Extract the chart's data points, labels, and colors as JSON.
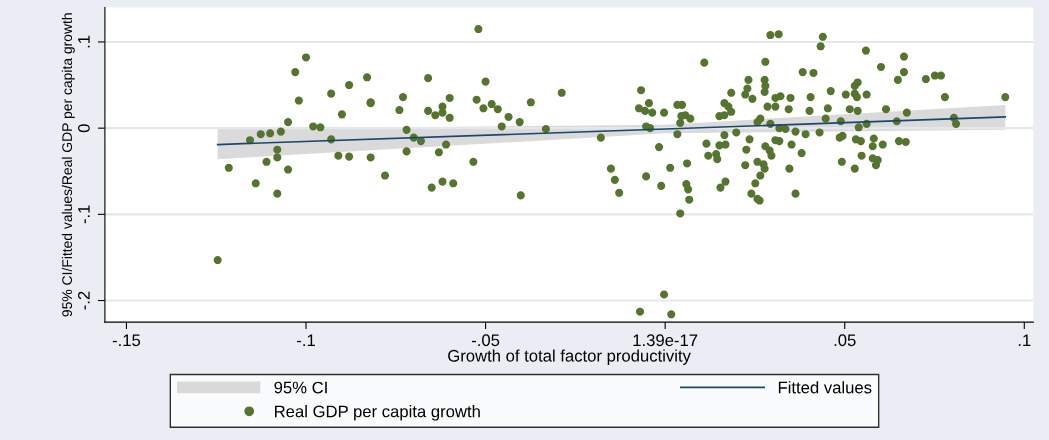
{
  "chart_data": {
    "type": "scatter",
    "xlabel": "Growth of total factor productivity",
    "ylabel": "95% CI/Fitted values/Real GDP per capita growth",
    "xlim": [
      -0.156,
      0.1025
    ],
    "ylim": [
      -0.225,
      0.14
    ],
    "xticks": [
      {
        "value": -0.15,
        "label": "-.15"
      },
      {
        "value": -0.1,
        "label": "-.1"
      },
      {
        "value": -0.05,
        "label": "-.05"
      },
      {
        "value": 0,
        "label": "1.39e-17"
      },
      {
        "value": 0.05,
        "label": ".05"
      },
      {
        "value": 0.1,
        "label": ".1"
      }
    ],
    "yticks": [
      {
        "value": -0.2,
        "label": "-.2"
      },
      {
        "value": -0.1,
        "label": "-.1"
      },
      0,
      {
        "value": 0.1,
        "label": ".1"
      }
    ],
    "grid": "y",
    "legend": "bottom",
    "annotations": [
      "95% CI"
    ],
    "series": [
      {
        "name": "Fitted values",
        "type": "line",
        "color": "#1a476f",
        "x": [
          -0.1246,
          0,
          0.0947
        ],
        "values": [
          -0.019,
          -0.001,
          0.013
        ],
        "lower": [
          -0.036,
          -0.006,
          -0.002
        ],
        "upper": [
          -0.001,
          0.004,
          0.027
        ]
      },
      {
        "name": "Real GDP per capita growth",
        "color": "#55752f",
        "marker": "circle",
        "x": [
          -0.1246,
          -0.1215,
          -0.1156,
          -0.114,
          -0.1126,
          -0.111,
          -0.11,
          -0.108,
          -0.108,
          -0.108,
          -0.107,
          -0.105,
          -0.105,
          -0.103,
          -0.102,
          -0.1,
          -0.098,
          -0.096,
          -0.093,
          -0.093,
          -0.091,
          -0.09,
          -0.088,
          -0.088,
          -0.083,
          -0.082,
          -0.082,
          -0.082,
          -0.078,
          -0.074,
          -0.073,
          -0.072,
          -0.072,
          -0.07,
          -0.068,
          -0.066,
          -0.066,
          -0.065,
          -0.064,
          -0.063,
          -0.062,
          -0.062,
          -0.062,
          -0.061,
          -0.06,
          -0.06,
          -0.059,
          -0.052,
          -0.05,
          -0.0525,
          -0.0506,
          -0.0483,
          -0.0466,
          -0.0436,
          -0.0405,
          -0.0455,
          -0.0374,
          -0.0332,
          -0.0288,
          -0.0179,
          -0.0151,
          -0.0534,
          -0.0067,
          -0.0045,
          -0.0073,
          -0.0056,
          -0.0036,
          -0.0003,
          -0.0053,
          -0.0042,
          0.0034,
          0.0047,
          0.0045,
          0.0056,
          0.007,
          0.0042,
          0.0034,
          0.0109,
          0.0184,
          0.0165,
          0.0176,
          0.0184,
          0.0151,
          0.0165,
          0.0198,
          0.0165,
          0.0115,
          0.0151,
          0.0168,
          0.012,
          0.0142,
          0.0145,
          -0.0017,
          0.0014,
          0.0061,
          -0.0402,
          -0.014,
          -0.0128,
          -0.0053,
          -0.0011,
          0.0059,
          0.0064,
          0.0067,
          0.0042,
          0.0168,
          0.0154,
          -0.0003,
          -0.007,
          0.0017,
          0.0293,
          0.0316,
          0.0439,
          0.0433,
          0.0559,
          0.0665,
          0.0279,
          0.0601,
          0.0665,
          0.0383,
          0.0413,
          0.0726,
          0.0751,
          0.0768,
          0.0648,
          0.0232,
          0.0277,
          0.0536,
          0.0528,
          0.0279,
          0.0229,
          0.0277,
          0.0461,
          0.0223,
          0.0243,
          0.0503,
          0.0528,
          0.0534,
          0.0561,
          0.0307,
          0.0321,
          0.0349,
          0.0405,
          0.0779,
          0.0947,
          0.0285,
          0.0307,
          0.0344,
          0.0402,
          0.0453,
          0.0514,
          0.0536,
          0.0615,
          0.0673,
          0.0265,
          0.0257,
          0.0447,
          0.0489,
          0.0645,
          0.0804,
          0.081,
          0.0561,
          0.0539,
          0.0293,
          0.0318,
          0.0335,
          0.0363,
          0.0391,
          0.043,
          0.0235,
          0.0307,
          0.0318,
          0.0352,
          0.0486,
          0.0494,
          0.0531,
          0.0545,
          0.0581,
          0.0578,
          0.0606,
          0.0651,
          0.067,
          0.0226,
          0.0279,
          0.0291,
          0.0296,
          0.038,
          0.0547,
          0.0578,
          0.0592,
          0.0587,
          0.0492,
          0.0257,
          0.0274,
          0.0277,
          0.0223,
          0.0346,
          0.0528,
          0.0265,
          0.0251,
          0.024,
          0.0263,
          0.0257,
          0.0363
        ],
        "values": [
          -0.153,
          -0.046,
          -0.014,
          -0.064,
          -0.007,
          -0.039,
          -0.006,
          -0.025,
          -0.034,
          -0.076,
          -0.004,
          0.007,
          -0.048,
          0.065,
          0.032,
          0.082,
          0.002,
          0.001,
          0.04,
          -0.013,
          -0.032,
          0.016,
          -0.033,
          0.05,
          0.059,
          0.03,
          0.029,
          -0.034,
          -0.055,
          0.021,
          0.036,
          -0.027,
          -0.002,
          -0.011,
          -0.015,
          0.058,
          0.02,
          -0.069,
          0.015,
          -0.028,
          -0.062,
          0.018,
          0.025,
          -0.019,
          0.035,
          0.012,
          -0.064,
          0.115,
          0.054,
          0.033,
          0.023,
          0.028,
          0.022,
          0.013,
          0.007,
          0.002,
          0.03,
          -0.001,
          0.041,
          -0.011,
          -0.047,
          -0.039,
          0.044,
          0.029,
          0.023,
          0.02,
          0.018,
          0.018,
          0.002,
          0.0,
          0.027,
          0.027,
          0.014,
          0.015,
          0.011,
          0.006,
          -0.007,
          0.076,
          0.041,
          0.029,
          0.025,
          0.019,
          0.014,
          0.015,
          -0.005,
          -0.008,
          -0.018,
          -0.02,
          -0.019,
          -0.032,
          -0.03,
          -0.036,
          -0.022,
          -0.046,
          -0.041,
          -0.078,
          -0.06,
          -0.075,
          -0.056,
          -0.067,
          -0.065,
          -0.071,
          -0.083,
          -0.099,
          -0.062,
          -0.069,
          -0.193,
          -0.213,
          -0.216,
          0.108,
          0.109,
          0.106,
          0.095,
          0.09,
          0.083,
          0.077,
          0.071,
          0.065,
          0.065,
          0.064,
          0.057,
          0.061,
          0.061,
          0.056,
          0.056,
          0.056,
          0.053,
          0.049,
          0.049,
          0.046,
          0.042,
          0.043,
          0.039,
          0.034,
          0.039,
          0.04,
          0.036,
          0.039,
          0.035,
          0.037,
          0.035,
          0.036,
          0.036,
          0.036,
          0.025,
          0.025,
          0.022,
          0.02,
          0.023,
          0.022,
          0.02,
          0.022,
          0.018,
          0.011,
          0.007,
          0.011,
          0.008,
          0.008,
          0.012,
          0.005,
          0.005,
          0.001,
          0.005,
          0.0,
          -0.001,
          -0.004,
          -0.007,
          -0.005,
          -0.013,
          -0.014,
          -0.015,
          -0.019,
          -0.011,
          -0.009,
          -0.013,
          -0.015,
          -0.012,
          -0.021,
          -0.019,
          -0.015,
          -0.016,
          -0.025,
          -0.021,
          -0.026,
          -0.032,
          -0.029,
          -0.032,
          -0.035,
          -0.037,
          -0.043,
          -0.039,
          -0.039,
          -0.042,
          -0.047,
          -0.043,
          -0.047,
          -0.047,
          -0.055,
          -0.064,
          -0.076,
          -0.084,
          -0.082,
          -0.076
        ]
      }
    ]
  }
}
